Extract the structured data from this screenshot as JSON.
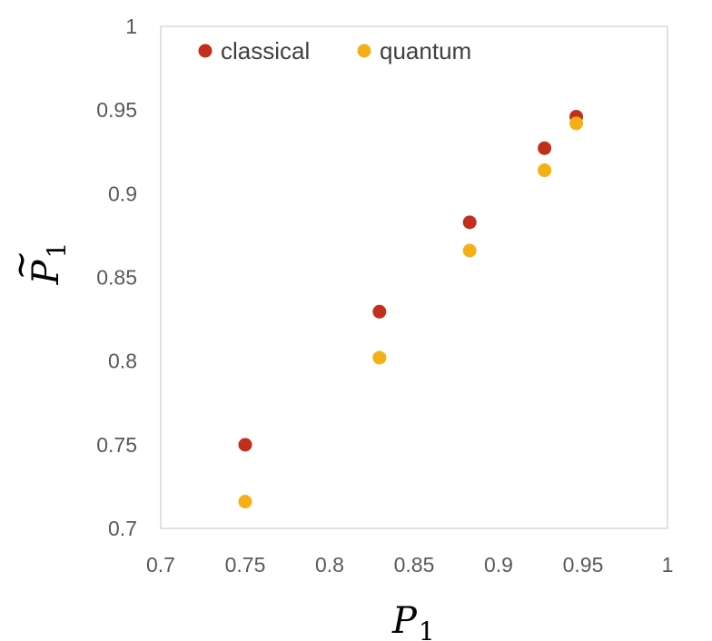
{
  "chart_data": {
    "type": "scatter",
    "title": "",
    "xlabel": "P_1",
    "ylabel": "P̃_1",
    "xlim": [
      0.7,
      1
    ],
    "ylim": [
      0.7,
      1
    ],
    "x_ticks": [
      "0.7",
      "0.75",
      "0.8",
      "0.85",
      "0.9",
      "0.95",
      "1"
    ],
    "y_ticks": [
      "0.7",
      "0.75",
      "0.8",
      "0.85",
      "0.9",
      "0.95",
      "1"
    ],
    "grid": false,
    "legend_position": "top",
    "series": [
      {
        "name": "classical",
        "color": "#c0301c",
        "x": [
          0.75,
          0.8295,
          0.8829,
          0.9272,
          0.946
        ],
        "y": [
          0.75,
          0.8295,
          0.8829,
          0.9272,
          0.946
        ]
      },
      {
        "name": "quantum",
        "color": "#f5b017",
        "x": [
          0.75,
          0.8295,
          0.8829,
          0.9272,
          0.946
        ],
        "y": [
          0.716,
          0.802,
          0.866,
          0.914,
          0.942
        ]
      }
    ]
  }
}
